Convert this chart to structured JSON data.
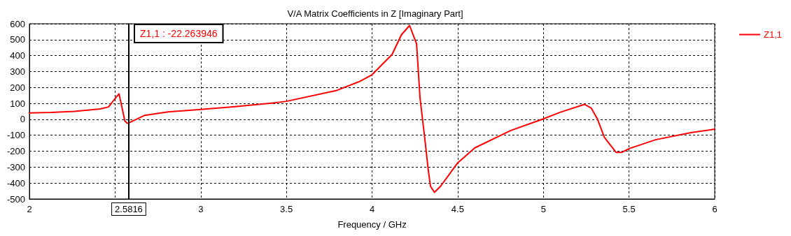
{
  "chart_data": {
    "type": "line",
    "title": "V/A Matrix Coefficients in Z [Imaginary Part]",
    "xlabel": "Frequency / GHz",
    "x": [
      2,
      2.128,
      2.264,
      2.414,
      2.462,
      2.5,
      2.523,
      2.543,
      2.557,
      2.571,
      2.5816,
      2.673,
      2.809,
      3,
      3.2,
      3.422,
      3.5,
      3.79,
      3.926,
      4,
      4.117,
      4.171,
      4.219,
      4.26,
      4.28,
      4.307,
      4.328,
      4.341,
      4.364,
      4.4,
      4.5,
      4.6,
      4.81,
      5,
      5.1,
      5.24,
      5.28,
      5.315,
      5.356,
      5.424,
      5.458,
      5.5,
      5.655,
      5.86,
      6
    ],
    "series": [
      {
        "name": "Z1,1",
        "color": "#ff0000",
        "values": [
          40,
          43,
          50,
          65,
          78,
          130,
          160,
          62,
          -10,
          -25,
          -22,
          25,
          47,
          62,
          80,
          103,
          113,
          180,
          237,
          280,
          407,
          530,
          589,
          473,
          135,
          -113,
          -317,
          -420,
          -458,
          -420,
          -273,
          -179,
          -70,
          3,
          45,
          94,
          70,
          3,
          -113,
          -207,
          -207,
          -184,
          -128,
          -84,
          -62
        ]
      }
    ],
    "xlim": [
      2,
      6
    ],
    "xticks": [
      2,
      {
        "value": 2.5,
        "label": null
      },
      3,
      3.5,
      4,
      4.5,
      5,
      5.5,
      6
    ],
    "ylim": [
      -500,
      600
    ],
    "yticks": [
      -500,
      -400,
      -300,
      -200,
      -100,
      0,
      100,
      200,
      300,
      400,
      500,
      600
    ],
    "grid": true,
    "legend": "right",
    "marker": "none",
    "line_style": "solid",
    "ref_lines": [
      {
        "axis": "x",
        "value": 2.5816,
        "label": "2.5816",
        "color": "#000000"
      }
    ],
    "annotations": [
      "Z1,1 : -22.263946"
    ]
  }
}
